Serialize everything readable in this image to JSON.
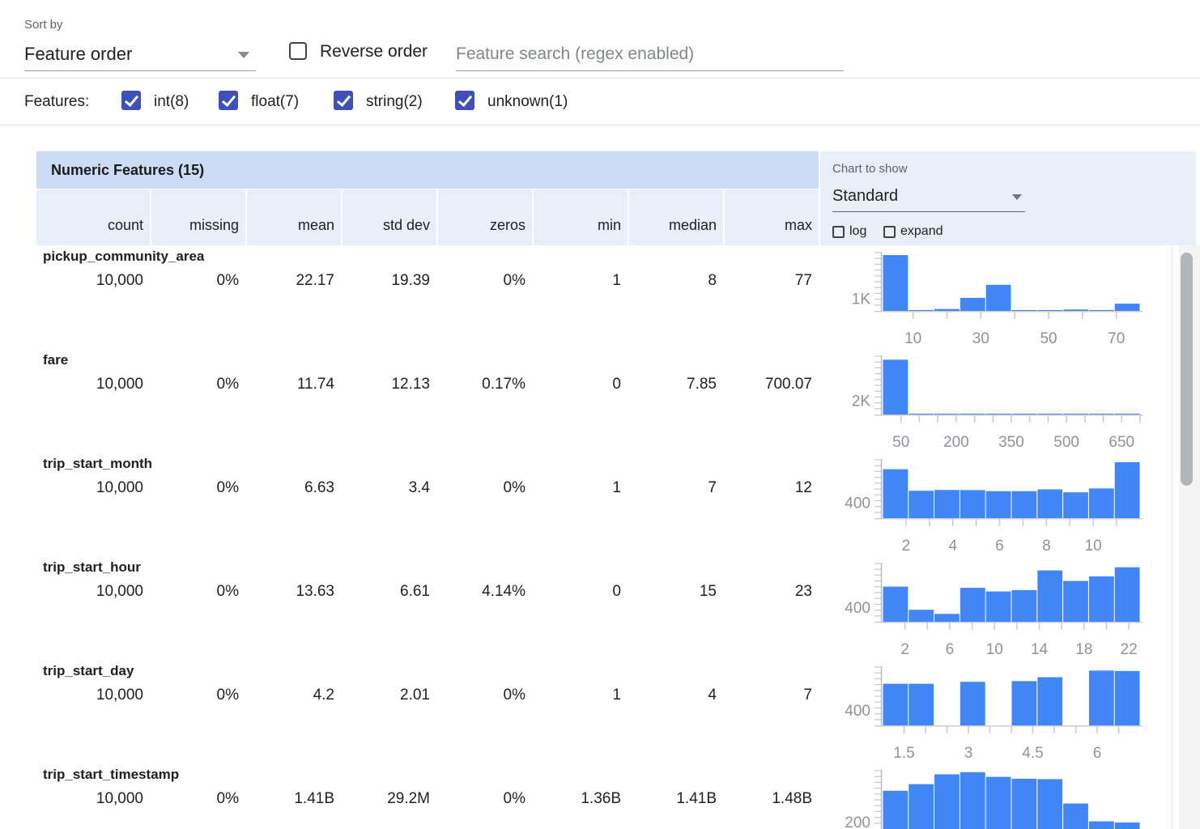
{
  "sort": {
    "label": "Sort by",
    "value": "Feature order"
  },
  "reverse": {
    "label": "Reverse order",
    "checked": false
  },
  "search": {
    "placeholder": "Feature search (regex enabled)"
  },
  "filter": {
    "label": "Features:",
    "options": [
      {
        "label": "int(8)",
        "checked": true
      },
      {
        "label": "float(7)",
        "checked": true
      },
      {
        "label": "string(2)",
        "checked": true
      },
      {
        "label": "unknown(1)",
        "checked": true
      }
    ]
  },
  "table": {
    "title": "Numeric Features (15)",
    "columns": [
      "count",
      "missing",
      "mean",
      "std dev",
      "zeros",
      "min",
      "median",
      "max"
    ]
  },
  "chart_controls": {
    "label": "Chart to show",
    "value": "Standard",
    "log_label": "log",
    "expand_label": "expand"
  },
  "colors": {
    "accent": "#3f51b5",
    "bar": "#4285f4",
    "title_band_bg": "#cbdcf4",
    "subheader_bg": "#e9eff9",
    "axis": "#c5c8cc",
    "hist_label": "#8e939a"
  },
  "features": [
    {
      "name": "pickup_community_area",
      "count": "10,000",
      "missing": "0%",
      "mean": "22.17",
      "std_dev": "19.39",
      "zeros": "0%",
      "min": "1",
      "median": "8",
      "max": "77",
      "chart": {
        "type": "histogram",
        "y_label": "1K",
        "y_label_value": 1000,
        "y_max": 4700,
        "x_min": 1,
        "x_max": 77,
        "bins": [
          4500,
          60,
          150,
          1050,
          2100,
          50,
          30,
          110,
          30,
          580
        ],
        "x_ticks": [
          10,
          20,
          30,
          40,
          50,
          60,
          70
        ],
        "x_labeled_ticks": [
          10,
          30,
          50,
          70
        ]
      }
    },
    {
      "name": "fare",
      "count": "10,000",
      "missing": "0%",
      "mean": "11.74",
      "std_dev": "12.13",
      "zeros": "0.17%",
      "min": "0",
      "median": "7.85",
      "max": "700.07",
      "chart": {
        "type": "histogram",
        "y_label": "2K",
        "y_label_value": 2000,
        "y_max": 8300,
        "x_min": 0,
        "x_max": 700,
        "bins": [
          7800,
          70,
          30,
          15,
          8,
          5,
          4,
          3,
          2,
          10
        ],
        "x_ticks": [
          50,
          100,
          150,
          200,
          250,
          300,
          350,
          400,
          450,
          500,
          550,
          600,
          650,
          700
        ],
        "x_labeled_ticks": [
          50,
          200,
          350,
          500,
          650
        ]
      }
    },
    {
      "name": "trip_start_month",
      "count": "10,000",
      "missing": "0%",
      "mean": "6.63",
      "std_dev": "3.4",
      "zeros": "0%",
      "min": "1",
      "median": "7",
      "max": "12",
      "chart": {
        "type": "histogram",
        "y_label": "400",
        "y_label_value": 400,
        "y_max": 1490,
        "x_min": 1,
        "x_max": 12,
        "bins": [
          1250,
          700,
          720,
          715,
          690,
          690,
          735,
          660,
          760,
          1430
        ],
        "x_ticks": [
          2,
          3,
          4,
          5,
          6,
          7,
          8,
          9,
          10,
          11
        ],
        "x_labeled_ticks": [
          2,
          4,
          6,
          8,
          10
        ]
      }
    },
    {
      "name": "trip_start_hour",
      "count": "10,000",
      "missing": "0%",
      "mean": "13.63",
      "std_dev": "6.61",
      "zeros": "4.14%",
      "min": "0",
      "median": "15",
      "max": "23",
      "chart": {
        "type": "histogram",
        "y_label": "400",
        "y_label_value": 400,
        "y_max": 1600,
        "x_min": 0,
        "x_max": 23,
        "bins": [
          965,
          330,
          215,
          930,
          830,
          870,
          1410,
          1120,
          1245,
          1495
        ],
        "x_ticks": [
          2,
          4,
          6,
          8,
          10,
          12,
          14,
          16,
          18,
          20,
          22
        ],
        "x_labeled_ticks": [
          2,
          6,
          10,
          14,
          18,
          22
        ]
      }
    },
    {
      "name": "trip_start_day",
      "count": "10,000",
      "missing": "0%",
      "mean": "4.2",
      "std_dev": "2.01",
      "zeros": "0%",
      "min": "1",
      "median": "4",
      "max": "7",
      "chart": {
        "type": "histogram",
        "y_label": "400",
        "y_label_value": 400,
        "y_max": 1500,
        "x_min": 1,
        "x_max": 7,
        "bins": [
          1070,
          1070,
          0,
          1120,
          0,
          1140,
          1240,
          0,
          1410,
          1400
        ],
        "x_ticks": [
          1.5,
          2,
          2.5,
          3,
          3.5,
          4,
          4.5,
          5,
          5.5,
          6,
          6.5
        ],
        "x_labeled_ticks": [
          1.5,
          3,
          4.5,
          6
        ]
      }
    },
    {
      "name": "trip_start_timestamp",
      "count": "10,000",
      "missing": "0%",
      "mean": "1.41B",
      "std_dev": "29.2M",
      "zeros": "0%",
      "min": "1.36B",
      "median": "1.41B",
      "max": "1.48B",
      "chart": {
        "type": "histogram",
        "y_label": "200",
        "y_label_value": 200,
        "y_max": 1600,
        "x_min": 0,
        "x_max": 1,
        "bins": [
          1050,
          1230,
          1500,
          1560,
          1430,
          1380,
          1370,
          700,
          210,
          180
        ],
        "x_ticks": [],
        "x_labeled_ticks": []
      }
    }
  ]
}
